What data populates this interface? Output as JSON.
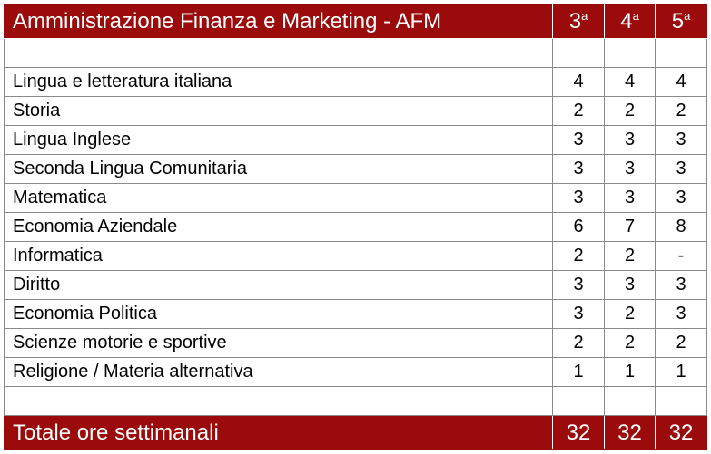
{
  "header": {
    "title": "Amministrazione Finanza e Marketing - AFM",
    "years": [
      {
        "num": "3",
        "sup": "a"
      },
      {
        "num": "4",
        "sup": "a"
      },
      {
        "num": "5",
        "sup": "a"
      }
    ]
  },
  "rows": [
    {
      "subject": "Lingua e letteratura italiana",
      "y3": "4",
      "y4": "4",
      "y5": "4"
    },
    {
      "subject": "Storia",
      "y3": "2",
      "y4": "2",
      "y5": "2"
    },
    {
      "subject": "Lingua Inglese",
      "y3": "3",
      "y4": "3",
      "y5": "3"
    },
    {
      "subject": "Seconda Lingua Comunitaria",
      "y3": "3",
      "y4": "3",
      "y5": "3"
    },
    {
      "subject": "Matematica",
      "y3": "3",
      "y4": "3",
      "y5": "3"
    },
    {
      "subject": "Economia Aziendale",
      "y3": "6",
      "y4": "7",
      "y5": "8"
    },
    {
      "subject": "Informatica",
      "y3": "2",
      "y4": "2",
      "y5": "-"
    },
    {
      "subject": "Diritto",
      "y3": "3",
      "y4": "3",
      "y5": "3"
    },
    {
      "subject": "Economia Politica",
      "y3": "3",
      "y4": "2",
      "y5": "3"
    },
    {
      "subject": "Scienze motorie e sportive",
      "y3": "2",
      "y4": "2",
      "y5": "2"
    },
    {
      "subject": "Religione / Materia alternativa",
      "y3": "1",
      "y4": "1",
      "y5": "1"
    }
  ],
  "total": {
    "label": "Totale ore settimanali",
    "y3": "32",
    "y4": "32",
    "y5": "32"
  },
  "colors": {
    "header_bg": "#9b0b0b",
    "header_text": "#ffffff",
    "grid": "#8a8a8a"
  }
}
